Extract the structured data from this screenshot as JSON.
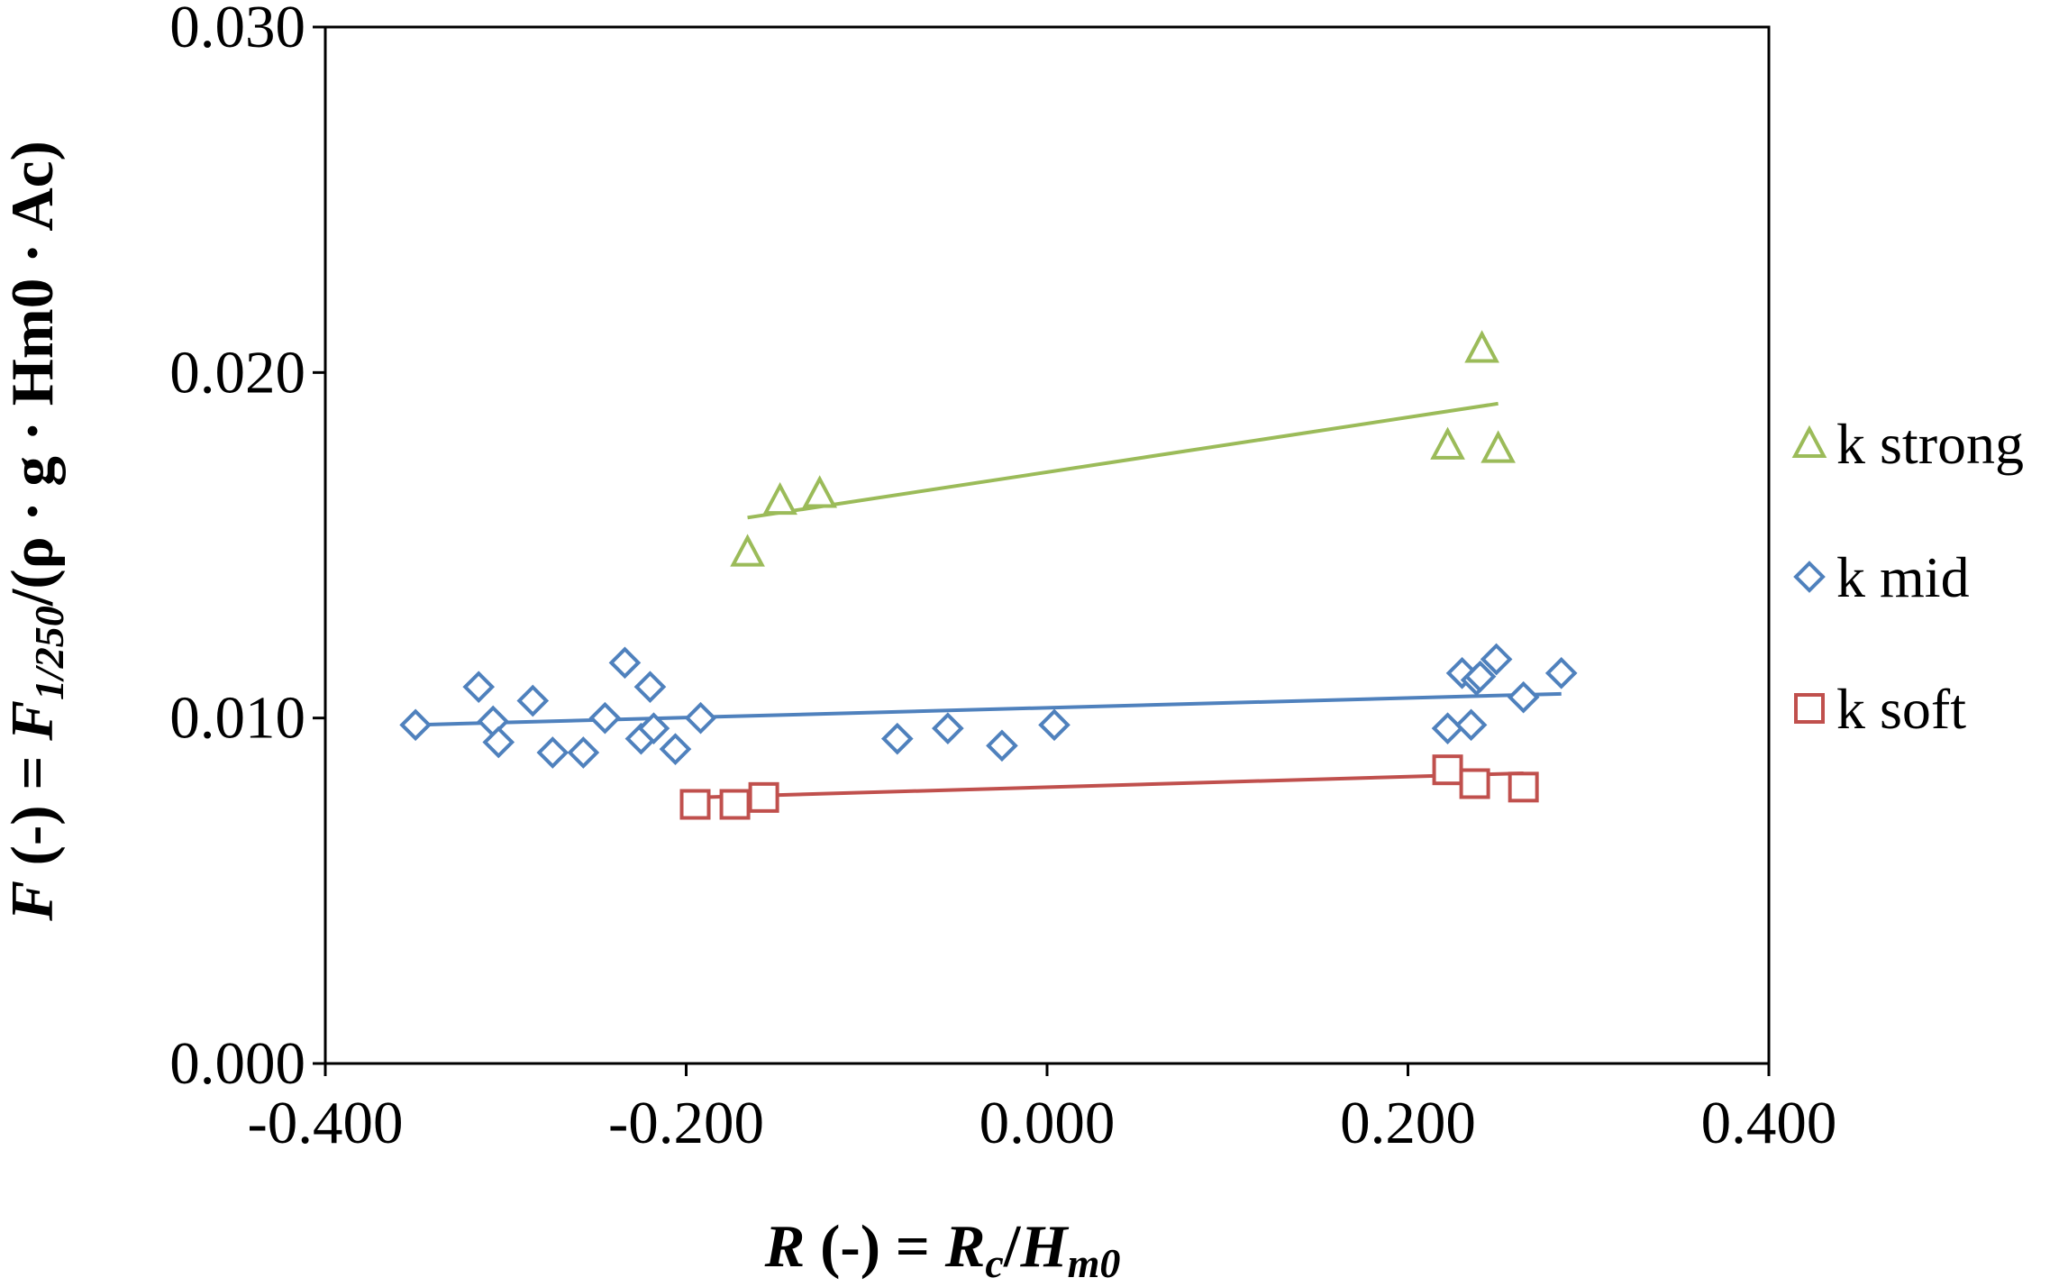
{
  "chart_data": {
    "type": "scatter",
    "title": "",
    "xlim": [
      -0.4,
      0.4
    ],
    "ylim": [
      0.0,
      0.03
    ],
    "x_ticks": [
      -0.4,
      -0.2,
      0.0,
      0.2,
      0.4
    ],
    "y_ticks": [
      0.0,
      0.01,
      0.02,
      0.03
    ],
    "x_tick_labels": [
      "-0.400",
      "-0.200",
      "0.000",
      "0.200",
      "0.400"
    ],
    "y_tick_labels": [
      "0.000",
      "0.010",
      "0.020",
      "0.030"
    ],
    "xlabel": {
      "R": "R",
      "dash": " (-) = ",
      "Rc_main": "R",
      "Rc_sub": "c",
      "slash": "/",
      "H_main": "H",
      "H_sub": "m0"
    },
    "ylabel": {
      "F": "F",
      "dash": " (-) = ",
      "F_main": "F",
      "F_sub": "1/250",
      "rest": "/(ρ · g · Hm0 · Ac)"
    },
    "grid": false,
    "legend_position": "right",
    "series": [
      {
        "name": "k strong",
        "marker": "triangle",
        "color": "#9BBB59",
        "points": [
          [
            -0.166,
            0.0148
          ],
          [
            -0.148,
            0.0163
          ],
          [
            -0.126,
            0.0165
          ],
          [
            0.222,
            0.0179
          ],
          [
            0.241,
            0.0207
          ],
          [
            0.25,
            0.0178
          ]
        ],
        "trendline": [
          [
            -0.166,
            0.0158
          ],
          [
            0.25,
            0.0191
          ]
        ]
      },
      {
        "name": "k mid",
        "marker": "diamond",
        "color": "#4F81BD",
        "points": [
          [
            -0.35,
            0.0098
          ],
          [
            -0.315,
            0.0109
          ],
          [
            -0.307,
            0.0099
          ],
          [
            -0.304,
            0.0093
          ],
          [
            -0.285,
            0.0105
          ],
          [
            -0.274,
            0.009
          ],
          [
            -0.257,
            0.009
          ],
          [
            -0.245,
            0.01
          ],
          [
            -0.234,
            0.0116
          ],
          [
            -0.225,
            0.0094
          ],
          [
            -0.22,
            0.0109
          ],
          [
            -0.218,
            0.0097
          ],
          [
            -0.206,
            0.0091
          ],
          [
            -0.192,
            0.01
          ],
          [
            -0.083,
            0.0094
          ],
          [
            -0.055,
            0.0097
          ],
          [
            -0.025,
            0.0092
          ],
          [
            0.004,
            0.0098
          ],
          [
            0.222,
            0.0097
          ],
          [
            0.23,
            0.0113
          ],
          [
            0.235,
            0.0098
          ],
          [
            0.238,
            0.0111
          ],
          [
            0.24,
            0.0112
          ],
          [
            0.249,
            0.0117
          ],
          [
            0.264,
            0.0106
          ],
          [
            0.285,
            0.0113
          ]
        ],
        "trendline": [
          [
            -0.35,
            0.0098
          ],
          [
            0.285,
            0.0107
          ]
        ]
      },
      {
        "name": "k soft",
        "marker": "square",
        "color": "#C0504D",
        "points": [
          [
            -0.195,
            0.0075
          ],
          [
            -0.173,
            0.0075
          ],
          [
            -0.157,
            0.0077
          ],
          [
            0.222,
            0.0085
          ],
          [
            0.237,
            0.0081
          ],
          [
            0.264,
            0.008
          ]
        ],
        "trendline": [
          [
            -0.195,
            0.0077
          ],
          [
            0.264,
            0.0084
          ]
        ]
      }
    ]
  }
}
